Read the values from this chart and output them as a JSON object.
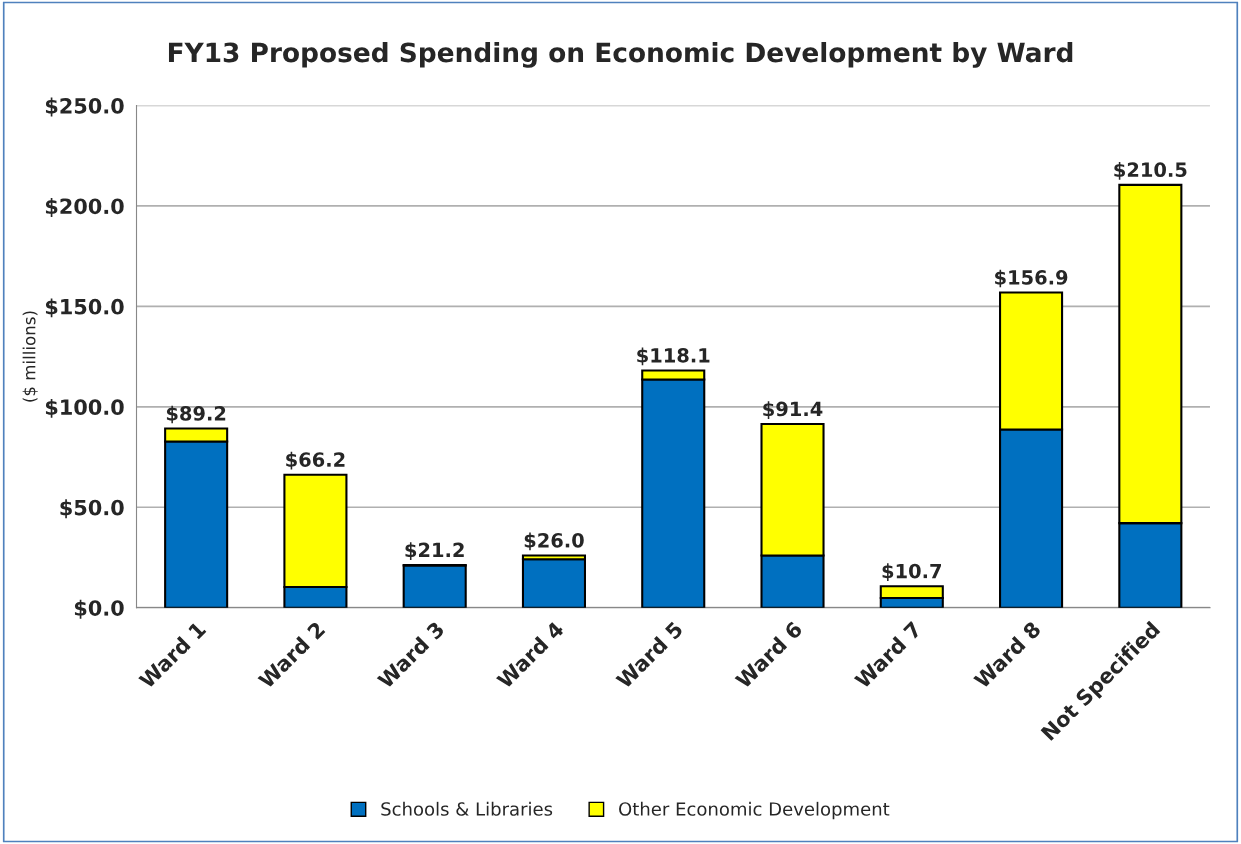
{
  "chart_data": {
    "type": "bar",
    "title": "FY13 Proposed Spending on Economic Development by Ward",
    "ylabel": "($ millions)",
    "categories": [
      "Ward 1",
      "Ward 2",
      "Ward 3",
      "Ward 4",
      "Ward 5",
      "Ward 6",
      "Ward 7",
      "Ward 8",
      "Not Specified"
    ],
    "stacked": true,
    "series": [
      {
        "name": "Schools & Libraries",
        "color": "#0070c0",
        "values": [
          82.7,
          10.3,
          21.0,
          24.1,
          113.6,
          26.0,
          4.8,
          88.7,
          42.1
        ]
      },
      {
        "name": "Other Economic Development",
        "color": "#ffff00",
        "values": [
          6.5,
          55.9,
          0.2,
          1.9,
          4.5,
          65.4,
          5.9,
          68.2,
          168.4
        ]
      }
    ],
    "totals": [
      "$89.2",
      "$66.2",
      "$21.2",
      "$26.0",
      "$118.1",
      "$91.4",
      "$10.7",
      "$156.9",
      "$210.5"
    ],
    "ylim": [
      0,
      250
    ],
    "yticks": [
      {
        "value": 0,
        "label": "$0.0"
      },
      {
        "value": 50,
        "label": "$50.0"
      },
      {
        "value": 100,
        "label": "$100.0"
      },
      {
        "value": 150,
        "label": "$150.0"
      },
      {
        "value": 200,
        "label": "$200.0"
      },
      {
        "value": 250,
        "label": "$250.0"
      }
    ],
    "grid": "y",
    "legend": "bottom"
  }
}
